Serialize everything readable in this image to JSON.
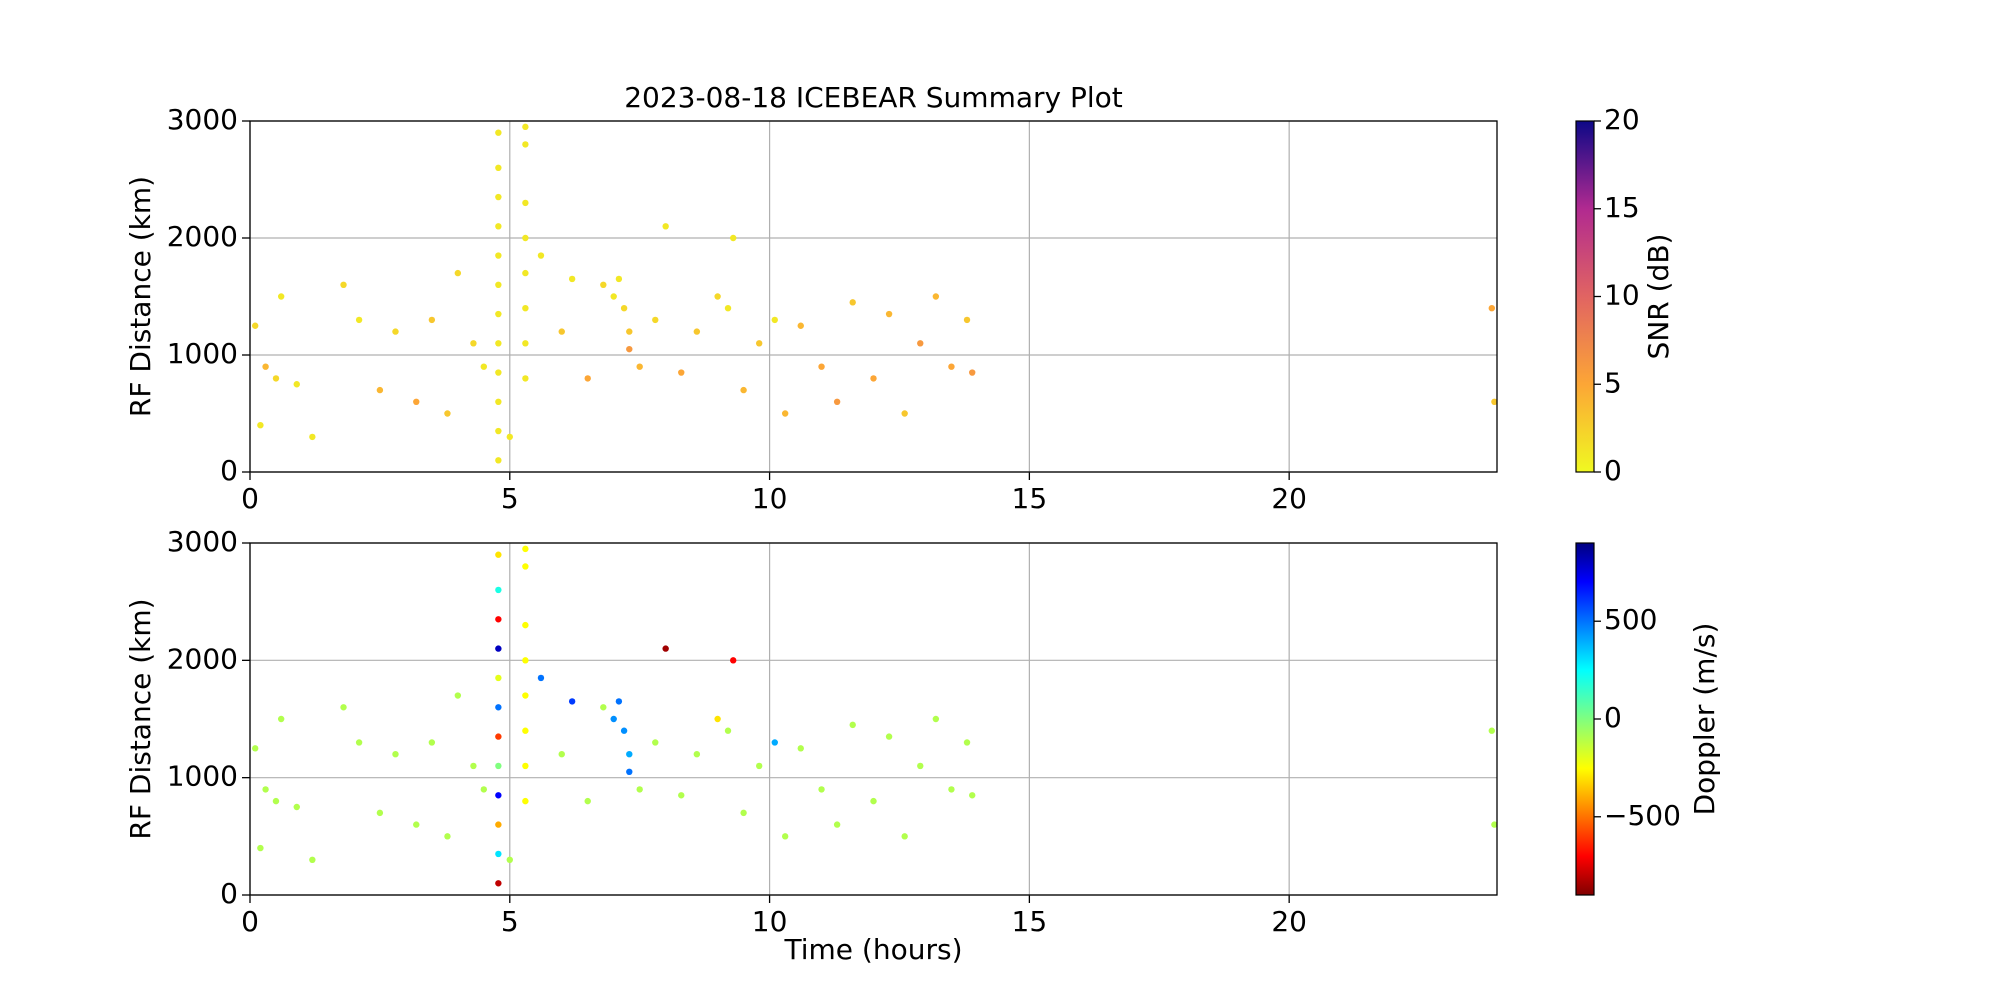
{
  "chart_data": [
    {
      "type": "scatter",
      "title": "2023-08-18 ICEBEAR Summary Plot",
      "ylabel": "RF Distance (km)",
      "xlim": [
        0,
        24
      ],
      "xticks": [
        0,
        5,
        10,
        15,
        20
      ],
      "ylim": [
        0,
        3000
      ],
      "yticks": [
        0,
        1000,
        2000,
        3000
      ],
      "grid": true,
      "colorbar_label": "SNR (dB)",
      "colormap": "plasma_r",
      "clim": [
        0,
        20
      ],
      "cticks": [
        0,
        5,
        10,
        15,
        20
      ],
      "x": [
        0.1,
        0.2,
        0.3,
        0.5,
        0.6,
        0.9,
        1.2,
        1.8,
        2.1,
        2.5,
        2.8,
        3.2,
        3.5,
        3.8,
        4.0,
        4.3,
        4.5,
        4.78,
        4.78,
        4.78,
        4.78,
        4.78,
        4.78,
        4.78,
        4.78,
        4.78,
        4.78,
        4.78,
        4.78,
        5.0,
        5.3,
        5.3,
        5.3,
        5.3,
        5.3,
        5.3,
        5.3,
        5.3,
        5.6,
        6.0,
        6.2,
        6.5,
        6.8,
        7.0,
        7.1,
        7.2,
        7.3,
        7.3,
        7.5,
        7.8,
        8.0,
        8.3,
        8.6,
        9.0,
        9.2,
        9.3,
        9.5,
        9.8,
        10.1,
        10.3,
        10.6,
        11.0,
        11.3,
        11.6,
        12.0,
        12.3,
        12.6,
        12.9,
        13.2,
        13.5,
        13.8,
        13.9,
        23.9,
        23.95
      ],
      "y": [
        1250,
        400,
        900,
        800,
        1500,
        750,
        300,
        1600,
        1300,
        700,
        1200,
        600,
        1300,
        500,
        1700,
        1100,
        900,
        100,
        350,
        600,
        850,
        1100,
        1350,
        1600,
        1850,
        2100,
        2350,
        2600,
        2900,
        300,
        800,
        1100,
        1400,
        1700,
        2000,
        2300,
        2800,
        2950,
        1850,
        1200,
        1650,
        800,
        1600,
        1500,
        1650,
        1400,
        1200,
        1050,
        900,
        1300,
        2100,
        850,
        1200,
        1500,
        1400,
        2000,
        700,
        1100,
        1300,
        500,
        1250,
        900,
        600,
        1450,
        800,
        1350,
        500,
        1100,
        1500,
        900,
        1300,
        850,
        1400,
        600
      ],
      "c": [
        2,
        1,
        4,
        2,
        1,
        1,
        1,
        2,
        1,
        4,
        2,
        5,
        3,
        3,
        2,
        2,
        1,
        1,
        1,
        1,
        1,
        1,
        1,
        1,
        1,
        1,
        1,
        1,
        1,
        1,
        1,
        1,
        1,
        1,
        1,
        1,
        1,
        1,
        1,
        3,
        1,
        5,
        2,
        1,
        1,
        2,
        3,
        6,
        4,
        2,
        1,
        5,
        3,
        2,
        1,
        1,
        4,
        3,
        1,
        4,
        4,
        5,
        6,
        3,
        5,
        4,
        3,
        6,
        4,
        5,
        3,
        6,
        5,
        3
      ]
    },
    {
      "type": "scatter",
      "ylabel": "RF Distance (km)",
      "xlabel": "Time (hours)",
      "xlim": [
        0,
        24
      ],
      "xticks": [
        0,
        5,
        10,
        15,
        20
      ],
      "ylim": [
        0,
        3000
      ],
      "yticks": [
        0,
        1000,
        2000,
        3000
      ],
      "grid": true,
      "colorbar_label": "Doppler (m/s)",
      "colormap": "jet_r",
      "clim": [
        -900,
        900
      ],
      "cticks": [
        {
          "value": -500,
          "label": "−500"
        },
        0,
        500
      ],
      "x": [
        0.1,
        0.2,
        0.3,
        0.5,
        0.6,
        0.9,
        1.2,
        1.8,
        2.1,
        2.5,
        2.8,
        3.2,
        3.5,
        3.8,
        4.0,
        4.3,
        4.5,
        4.78,
        4.78,
        4.78,
        4.78,
        4.78,
        4.78,
        4.78,
        4.78,
        4.78,
        4.78,
        4.78,
        4.78,
        5.0,
        5.3,
        5.3,
        5.3,
        5.3,
        5.3,
        5.3,
        5.3,
        5.3,
        5.6,
        6.0,
        6.2,
        6.5,
        6.8,
        7.0,
        7.1,
        7.2,
        7.3,
        7.3,
        7.5,
        7.8,
        8.0,
        8.3,
        8.6,
        9.0,
        9.2,
        9.3,
        9.5,
        9.8,
        10.1,
        10.3,
        10.6,
        11.0,
        11.3,
        11.6,
        12.0,
        12.3,
        12.6,
        12.9,
        13.2,
        13.5,
        13.8,
        13.9,
        23.9,
        23.95
      ],
      "y": [
        1250,
        400,
        900,
        800,
        1500,
        750,
        300,
        1600,
        1300,
        700,
        1200,
        600,
        1300,
        500,
        1700,
        1100,
        900,
        100,
        350,
        600,
        850,
        1100,
        1350,
        1600,
        1850,
        2100,
        2350,
        2600,
        2900,
        300,
        800,
        1100,
        1400,
        1700,
        2000,
        2300,
        2800,
        2950,
        1850,
        1200,
        1650,
        800,
        1600,
        1500,
        1650,
        1400,
        1200,
        1050,
        900,
        1300,
        2100,
        850,
        1200,
        1500,
        1400,
        2000,
        700,
        1100,
        1300,
        500,
        1250,
        900,
        600,
        1450,
        800,
        1350,
        500,
        1100,
        1500,
        900,
        1300,
        850,
        1400,
        600
      ],
      "c": [
        -100,
        -100,
        -100,
        -100,
        -100,
        -100,
        -100,
        -100,
        -100,
        -100,
        -100,
        -100,
        -100,
        -100,
        -100,
        -100,
        -100,
        -800,
        300,
        -400,
        700,
        0,
        -600,
        500,
        -200,
        800,
        -700,
        200,
        -300,
        -100,
        -250,
        -250,
        -250,
        -250,
        -250,
        -250,
        -250,
        -250,
        500,
        -100,
        600,
        -100,
        -100,
        450,
        500,
        450,
        400,
        500,
        -100,
        -100,
        -850,
        -100,
        -100,
        -300,
        -100,
        -700,
        -100,
        -100,
        400,
        -100,
        -100,
        -100,
        -100,
        -100,
        -100,
        -100,
        -100,
        -100,
        -100,
        -100,
        -100,
        -100,
        -100,
        -100
      ]
    }
  ]
}
